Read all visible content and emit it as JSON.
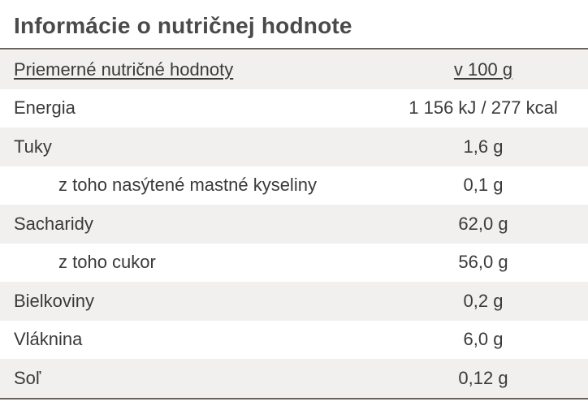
{
  "title": "Informácie o nutričnej hodnote",
  "table": {
    "header": {
      "name": "Priemerné nutričné hodnoty",
      "value": "v 100 g"
    },
    "rows": [
      {
        "name": "Energia",
        "value": "1 156 kJ / 277 kcal"
      },
      {
        "name": "Tuky",
        "value": "1,6 g"
      },
      {
        "name": "z toho nasýtené mastné kyseliny",
        "value": "0,1 g"
      },
      {
        "name": "Sacharidy",
        "value": "62,0 g"
      },
      {
        "name": "z toho cukor",
        "value": "56,0 g"
      },
      {
        "name": "Bielkoviny",
        "value": "0,2 g"
      },
      {
        "name": "Vláknina",
        "value": "6,0 g"
      },
      {
        "name": "Soľ",
        "value": "0,12 g"
      }
    ]
  }
}
